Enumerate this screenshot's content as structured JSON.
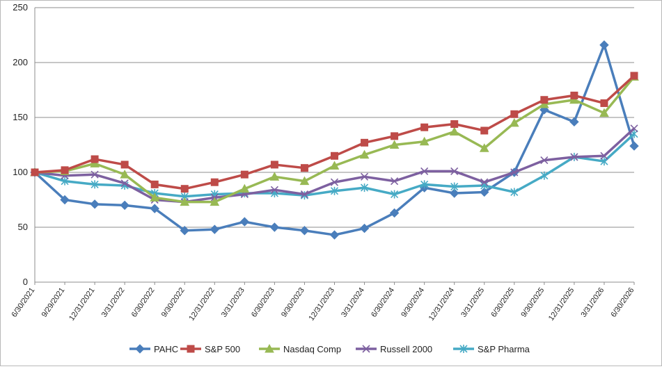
{
  "chart_data": {
    "type": "line",
    "title": "",
    "xlabel": "",
    "ylabel": "",
    "ylim": [
      0,
      250
    ],
    "yticks": [
      0,
      50,
      100,
      150,
      200,
      250
    ],
    "grid": "horizontal",
    "legend_position": "bottom",
    "categories": [
      "6/30/2021",
      "9/29/2021",
      "12/31/2021",
      "3/31/2022",
      "6/30/2022",
      "9/30/2022",
      "12/31/2022",
      "3/31/2023",
      "6/30/2023",
      "9/30/2023",
      "12/31/2023",
      "3/31/2024",
      "6/30/2024",
      "9/30/2024",
      "12/31/2024",
      "3/31/2025",
      "6/30/2025",
      "9/30/2025",
      "12/31/2025",
      "3/31/2026",
      "6/30/2026"
    ],
    "series": [
      {
        "name": "PAHC",
        "color": "#4a7ebb",
        "marker": "diamond",
        "values": [
          100,
          75,
          71,
          70,
          67,
          47,
          48,
          55,
          50,
          47,
          43,
          49,
          63,
          86,
          81,
          82,
          100,
          157,
          146,
          216,
          124
        ]
      },
      {
        "name": "S&P 500",
        "color": "#be4b48",
        "marker": "square",
        "values": [
          100,
          102,
          112,
          107,
          89,
          85,
          91,
          98,
          107,
          104,
          115,
          127,
          133,
          141,
          144,
          138,
          153,
          166,
          170,
          163,
          188
        ]
      },
      {
        "name": "Nasdaq Comp",
        "color": "#98b954",
        "marker": "triangle",
        "values": [
          100,
          101,
          108,
          98,
          77,
          73,
          73,
          85,
          96,
          92,
          106,
          116,
          125,
          128,
          137,
          122,
          145,
          162,
          166,
          154,
          187
        ]
      },
      {
        "name": "Russell 2000",
        "color": "#7d60a0",
        "marker": "x",
        "values": [
          100,
          97,
          98,
          90,
          75,
          73,
          77,
          80,
          84,
          80,
          91,
          96,
          92,
          101,
          101,
          91,
          100,
          111,
          114,
          115,
          140
        ]
      },
      {
        "name": "S&P Pharma",
        "color": "#46aac5",
        "marker": "star",
        "values": [
          100,
          92,
          89,
          88,
          81,
          78,
          80,
          81,
          81,
          79,
          83,
          86,
          80,
          89,
          87,
          88,
          82,
          97,
          114,
          110,
          135
        ]
      }
    ]
  }
}
